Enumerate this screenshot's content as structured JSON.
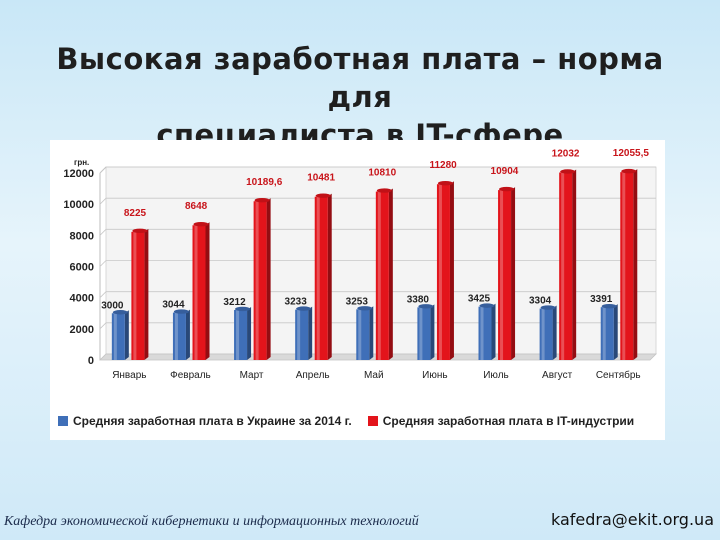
{
  "slide": {
    "title_line1": "Высокая заработная плата – норма для",
    "title_line2": "специалиста в IT-сфере",
    "footer_left": "Кафедра экономической кибернетики и информационных технологий",
    "footer_right": "kafedra@ekit.org.ua"
  },
  "chart_data": {
    "type": "bar",
    "title": "",
    "ylabel": "грн.",
    "xlabel": "",
    "ylim": [
      0,
      12000
    ],
    "yticks": [
      0,
      2000,
      4000,
      6000,
      8000,
      10000,
      12000
    ],
    "grid": true,
    "legend_position": "bottom",
    "categories": [
      "Январь",
      "Февраль",
      "Март",
      "Апрель",
      "Май",
      "Июнь",
      "Июль",
      "Август",
      "Сентябрь"
    ],
    "series": [
      {
        "name": "Средняя заработная плата в Украине за 2014 г.",
        "color": "#3f6fb8",
        "values": [
          3000,
          3044,
          3212,
          3233,
          3253,
          3380,
          3425,
          3304,
          3391
        ],
        "labels": [
          "3000",
          "3044",
          "3212",
          "3233",
          "3253",
          "3380",
          "3425",
          "3304",
          "3391"
        ]
      },
      {
        "name": "Средняя заработная плата в IT-индустрии",
        "color": "#e3141b",
        "values": [
          8225,
          8648,
          10189.6,
          10481,
          10810,
          11280,
          10904,
          12032,
          12055.5
        ],
        "labels": [
          "8225",
          "8648",
          "10189,6",
          "10481",
          "10810",
          "11280",
          "10904",
          "12032",
          "12055,5"
        ]
      }
    ]
  }
}
